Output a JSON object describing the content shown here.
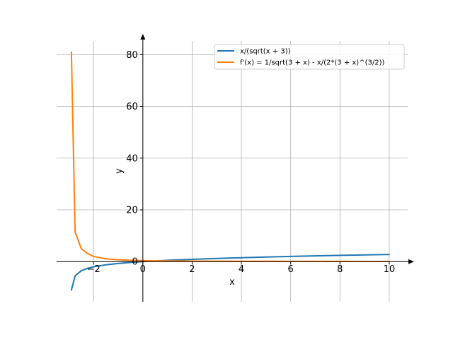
{
  "chart_data": {
    "type": "line",
    "title": "",
    "xlabel": "x",
    "ylabel": "y",
    "xlim": [
      -3.5,
      10.75
    ],
    "ylim": [
      -15.5,
      88.0
    ],
    "grid": true,
    "legend_position": "top-right",
    "x_ticks": [
      {
        "value": -2,
        "label": "−2"
      },
      {
        "value": 0,
        "label": "0"
      },
      {
        "value": 2,
        "label": "2"
      },
      {
        "value": 4,
        "label": "4"
      },
      {
        "value": 6,
        "label": "6"
      },
      {
        "value": 8,
        "label": "8"
      },
      {
        "value": 10,
        "label": "10"
      }
    ],
    "y_ticks": [
      {
        "value": 0,
        "label": "0"
      },
      {
        "value": 20,
        "label": "20"
      },
      {
        "value": 40,
        "label": "40"
      },
      {
        "value": 60,
        "label": "60"
      },
      {
        "value": 80,
        "label": "80"
      }
    ],
    "series": [
      {
        "name": "x/(sqrt(x + 3))",
        "color": "#1f77b4",
        "x": [
          -2.9,
          -2.75,
          -2.5,
          -2.25,
          -2.0,
          -1.5,
          -1.0,
          -0.5,
          0,
          0.5,
          1,
          2,
          3,
          4,
          5,
          6,
          7,
          8,
          9,
          10
        ],
        "y": [
          -11.0,
          -5.5,
          -3.54,
          -2.6,
          -2.0,
          -1.22,
          -0.71,
          -0.32,
          0,
          0.27,
          0.5,
          0.89,
          1.22,
          1.51,
          1.77,
          2.0,
          2.21,
          2.41,
          2.6,
          2.77
        ]
      },
      {
        "name": "f'(x) = 1/sqrt(3 + x) - x/(2*(3 + x)^(3/2))",
        "color": "#ff7f0e",
        "x": [
          -2.9,
          -2.75,
          -2.5,
          -2.25,
          -2.0,
          -1.5,
          -1.0,
          -0.5,
          0,
          0.5,
          1,
          2,
          3,
          4,
          5,
          6,
          7,
          8,
          9,
          10
        ],
        "y": [
          81.0,
          11.5,
          5.0,
          3.15,
          2.0,
          1.09,
          0.71,
          0.51,
          0.39,
          0.32,
          0.28,
          0.22,
          0.18,
          0.15,
          0.13,
          0.11,
          0.1,
          0.09,
          0.08,
          0.08
        ]
      }
    ]
  }
}
